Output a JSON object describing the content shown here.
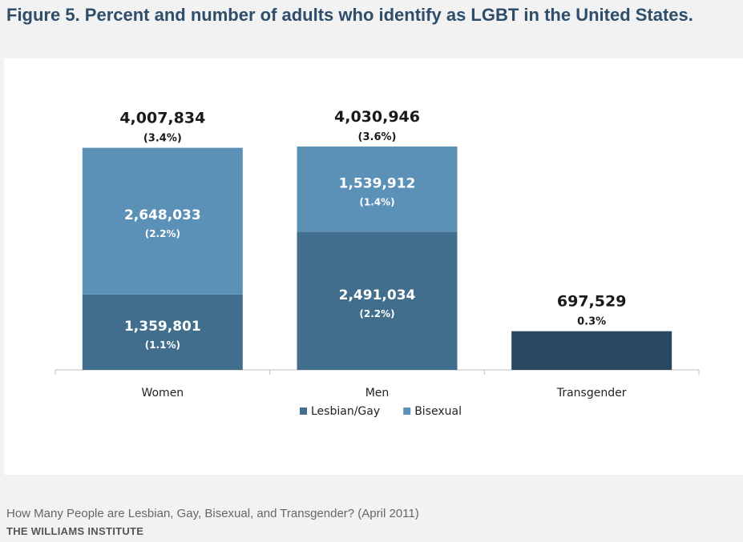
{
  "figure": {
    "title": "Figure 5. Percent and number of adults who identify as LGBT in the United States.",
    "caption": "How Many People are Lesbian, Gay, Bisexual, and Transgender? (April 2011)",
    "source": "THE WILLIAMS INSTITUTE"
  },
  "colors": {
    "lesbian_gay": "#426e8e",
    "bisexual": "#5b91b7",
    "transgender": "#2a4861",
    "axis": "#bfbfbf",
    "label_dark": "#1a1a1a",
    "label_light": "#ffffff"
  },
  "chart_data": {
    "type": "bar",
    "stacked": true,
    "categories": [
      "Women",
      "Men",
      "Transgender"
    ],
    "series": [
      {
        "name": "Lesbian/Gay",
        "values": [
          1359801,
          2491034,
          null
        ],
        "labels": [
          "1,359,801",
          "2,491,034",
          null
        ],
        "pct_labels": [
          "(1.1%)",
          "(2.2%)",
          null
        ]
      },
      {
        "name": "Bisexual",
        "values": [
          2648033,
          1539912,
          null
        ],
        "labels": [
          "2,648,033",
          "1,539,912",
          null
        ],
        "pct_labels": [
          "(2.2%)",
          "(1.4%)",
          null
        ]
      },
      {
        "name": "Transgender",
        "values": [
          null,
          null,
          697529
        ],
        "labels": [
          null,
          null,
          "697,529"
        ],
        "pct_labels": [
          null,
          null,
          "0.3%"
        ]
      }
    ],
    "totals": [
      {
        "value": 4007834,
        "label": "4,007,834",
        "pct": "(3.4%)"
      },
      {
        "value": 4030946,
        "label": "4,030,946",
        "pct": "(3.6%)"
      },
      {
        "value": 697529,
        "label": "697,529",
        "pct": "0.3%"
      }
    ],
    "legend": [
      "Lesbian/Gay",
      "Bisexual"
    ],
    "legend_position": "bottom",
    "title": "",
    "xlabel": "",
    "ylabel": "",
    "ylim": [
      0,
      4500000
    ],
    "grid": false
  }
}
